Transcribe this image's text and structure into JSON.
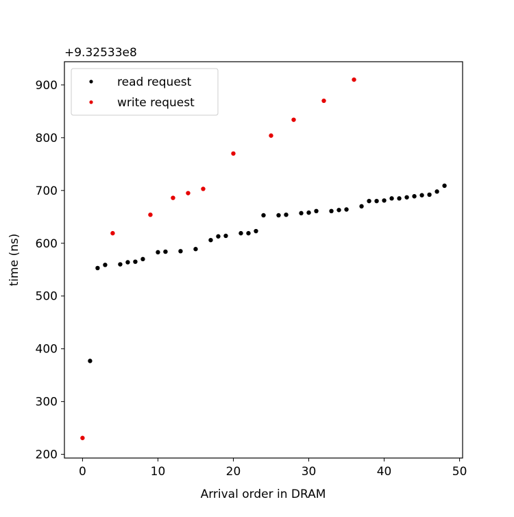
{
  "chart_data": {
    "type": "scatter",
    "offset_label": "+9.32533e8",
    "xlabel": "Arrival order in DRAM",
    "ylabel": "time (ns)",
    "xlim": [
      -2.4,
      50.4
    ],
    "ylim": [
      193,
      944
    ],
    "x_ticks": [
      0,
      10,
      20,
      30,
      40,
      50
    ],
    "y_ticks": [
      200,
      300,
      400,
      500,
      600,
      700,
      800,
      900
    ],
    "legend_position": "upper-left",
    "grid": false,
    "series": [
      {
        "name": "read request",
        "color": "#000000",
        "points": [
          [
            1,
            377
          ],
          [
            2,
            553
          ],
          [
            3,
            559
          ],
          [
            5,
            560
          ],
          [
            6,
            564
          ],
          [
            7,
            565
          ],
          [
            8,
            570
          ],
          [
            10,
            583
          ],
          [
            11,
            584
          ],
          [
            13,
            585
          ],
          [
            15,
            589
          ],
          [
            17,
            606
          ],
          [
            18,
            613
          ],
          [
            19,
            614
          ],
          [
            21,
            619
          ],
          [
            22,
            619
          ],
          [
            23,
            623
          ],
          [
            24,
            653
          ],
          [
            26,
            653
          ],
          [
            27,
            654
          ],
          [
            29,
            657
          ],
          [
            30,
            658
          ],
          [
            31,
            661
          ],
          [
            33,
            661
          ],
          [
            34,
            663
          ],
          [
            35,
            664
          ],
          [
            37,
            670
          ],
          [
            38,
            680
          ],
          [
            39,
            680
          ],
          [
            40,
            681
          ],
          [
            41,
            685
          ],
          [
            42,
            685
          ],
          [
            43,
            687
          ],
          [
            44,
            689
          ],
          [
            45,
            691
          ],
          [
            46,
            692
          ],
          [
            47,
            698
          ],
          [
            48,
            709
          ]
        ]
      },
      {
        "name": "write request",
        "color": "#e60000",
        "points": [
          [
            0,
            231
          ],
          [
            4,
            619
          ],
          [
            9,
            654
          ],
          [
            12,
            686
          ],
          [
            14,
            695
          ],
          [
            16,
            703
          ],
          [
            20,
            770
          ],
          [
            25,
            804
          ],
          [
            28,
            834
          ],
          [
            32,
            870
          ],
          [
            36,
            910
          ]
        ]
      }
    ]
  }
}
